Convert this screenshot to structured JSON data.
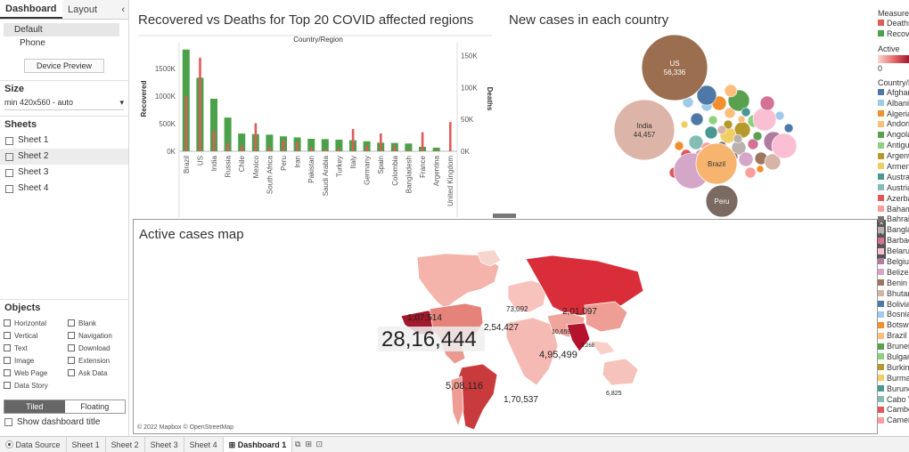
{
  "left_panel": {
    "tabs": {
      "dashboard": "Dashboard",
      "layout": "Layout",
      "collapse": "‹"
    },
    "devices": {
      "default": "Default",
      "phone": "Phone"
    },
    "device_preview": "Device Preview",
    "size": {
      "title": "Size",
      "value": "min 420x560 - auto"
    },
    "sheets": {
      "title": "Sheets",
      "items": [
        "Sheet 1",
        "Sheet 2",
        "Sheet 3",
        "Sheet 4"
      ]
    },
    "objects": {
      "title": "Objects",
      "items": [
        "Horizontal",
        "Blank",
        "Vertical",
        "Navigation",
        "Text",
        "Download",
        "Image",
        "Extension",
        "Web Page",
        "Ask Data",
        "Data Story"
      ]
    },
    "tiled": "Tiled",
    "floating": "Floating",
    "show_title": "Show dashboard title"
  },
  "dashboard": {
    "bar_title": "Recovered vs Deaths for Top 20 COVID affected regions",
    "bubble_title": "New cases in each country",
    "map_title": "Active cases map",
    "map_attribution": "© 2022 Mapbox © OpenStreetMap"
  },
  "chart_data": [
    {
      "type": "bar",
      "title": "Recovered vs Deaths for Top 20 COVID affected regions",
      "xlabel": "Country/Region",
      "ylabel": "Recovered",
      "y2label": "Deaths",
      "categories": [
        "Brazil",
        "US",
        "India",
        "Russia",
        "Chile",
        "Mexico",
        "South Africa",
        "Peru",
        "Iran",
        "Pakistan",
        "Saudi Arabia",
        "Turkey",
        "Italy",
        "Germany",
        "Spain",
        "Colombia",
        "Bangladesh",
        "France",
        "Argentina",
        "United Kingdom"
      ],
      "series": [
        {
          "name": "Recovered",
          "color": "#4aa14a",
          "values": [
            1840000,
            1330000,
            950000,
            610000,
            320000,
            310000,
            300000,
            270000,
            250000,
            225000,
            220000,
            210000,
            200000,
            180000,
            155000,
            150000,
            140000,
            80000,
            65000,
            2000
          ]
        },
        {
          "name": "Deaths",
          "color": "#e05a5a",
          "values": [
            87000,
            147000,
            33000,
            13000,
            9000,
            44000,
            7000,
            18000,
            15000,
            6000,
            3000,
            5000,
            35000,
            9000,
            28000,
            9000,
            2500,
            30000,
            2000,
            46000
          ]
        }
      ],
      "yticks": [
        "0K",
        "500K",
        "1000K",
        "1500K"
      ],
      "y2ticks": [
        "0K",
        "50K",
        "100K",
        "150K"
      ],
      "ylim": [
        0,
        1900000
      ],
      "y2lim": [
        0,
        165000
      ]
    },
    {
      "type": "bubble",
      "title": "New cases in each country",
      "labeled": [
        {
          "name": "US",
          "value": "56,336",
          "color": "#9a6e4f"
        },
        {
          "name": "India",
          "value": "44,457",
          "color": "#dcb4a8"
        },
        {
          "name": "Brazil",
          "value": "",
          "color": "#f7b46e"
        },
        {
          "name": "Peru",
          "value": "",
          "color": "#7a6a62"
        }
      ]
    },
    {
      "type": "map",
      "title": "Active cases map",
      "labels": [
        "1,07,514",
        "28,16,444",
        "2,54,427",
        "73,092",
        "2,01,097",
        "4,95,499",
        "5,08,116",
        "1,70,537",
        "10,659",
        "3,268",
        "6,825"
      ]
    }
  ],
  "legend": {
    "measure_title": "Measure",
    "measure_items": [
      {
        "label": "Deaths",
        "color": "#e05a5a"
      },
      {
        "label": "Recovered",
        "color": "#4aa14a"
      }
    ],
    "active_title": "Active",
    "active_min": "0",
    "country_title": "Country/Region",
    "countries": [
      {
        "label": "Afghanistan",
        "color": "#4e79a7"
      },
      {
        "label": "Albania",
        "color": "#a0cbe8"
      },
      {
        "label": "Algeria",
        "color": "#f28e2b"
      },
      {
        "label": "Andorra",
        "color": "#ffbe7d"
      },
      {
        "label": "Angola",
        "color": "#59a14f"
      },
      {
        "label": "Antigua and Barbuda",
        "color": "#8cd17d"
      },
      {
        "label": "Argentina",
        "color": "#b6992d"
      },
      {
        "label": "Armenia",
        "color": "#f1ce63"
      },
      {
        "label": "Australia",
        "color": "#499894"
      },
      {
        "label": "Austria",
        "color": "#86bcb6"
      },
      {
        "label": "Azerbaijan",
        "color": "#e15759"
      },
      {
        "label": "Bahamas",
        "color": "#ff9d9a"
      },
      {
        "label": "Bahrain",
        "color": "#79706e"
      },
      {
        "label": "Bangladesh",
        "color": "#bab0ac"
      },
      {
        "label": "Barbados",
        "color": "#d37295"
      },
      {
        "label": "Belarus",
        "color": "#fabfd2"
      },
      {
        "label": "Belgium",
        "color": "#b07aa1"
      },
      {
        "label": "Belize",
        "color": "#d4a6c8"
      },
      {
        "label": "Benin",
        "color": "#9d7660"
      },
      {
        "label": "Bhutan",
        "color": "#d7b5a6"
      },
      {
        "label": "Bolivia",
        "color": "#4e79a7"
      },
      {
        "label": "Bosnia and Herzegovina",
        "color": "#a0cbe8"
      },
      {
        "label": "Botswana",
        "color": "#f28e2b"
      },
      {
        "label": "Brazil",
        "color": "#ffbe7d"
      },
      {
        "label": "Brunei",
        "color": "#59a14f"
      },
      {
        "label": "Bulgaria",
        "color": "#8cd17d"
      },
      {
        "label": "Burkina Faso",
        "color": "#b6992d"
      },
      {
        "label": "Burma",
        "color": "#f1ce63"
      },
      {
        "label": "Burundi",
        "color": "#499894"
      },
      {
        "label": "Cabo Verde",
        "color": "#86bcb6"
      },
      {
        "label": "Cambodia",
        "color": "#e15759"
      },
      {
        "label": "Cameroon",
        "color": "#ff9d9a"
      }
    ]
  },
  "bottom_tabs": {
    "data_source": "Data Source",
    "sheets": [
      "Sheet 1",
      "Sheet 2",
      "Sheet 3",
      "Sheet 4"
    ],
    "dashboard": "Dashboard 1"
  }
}
